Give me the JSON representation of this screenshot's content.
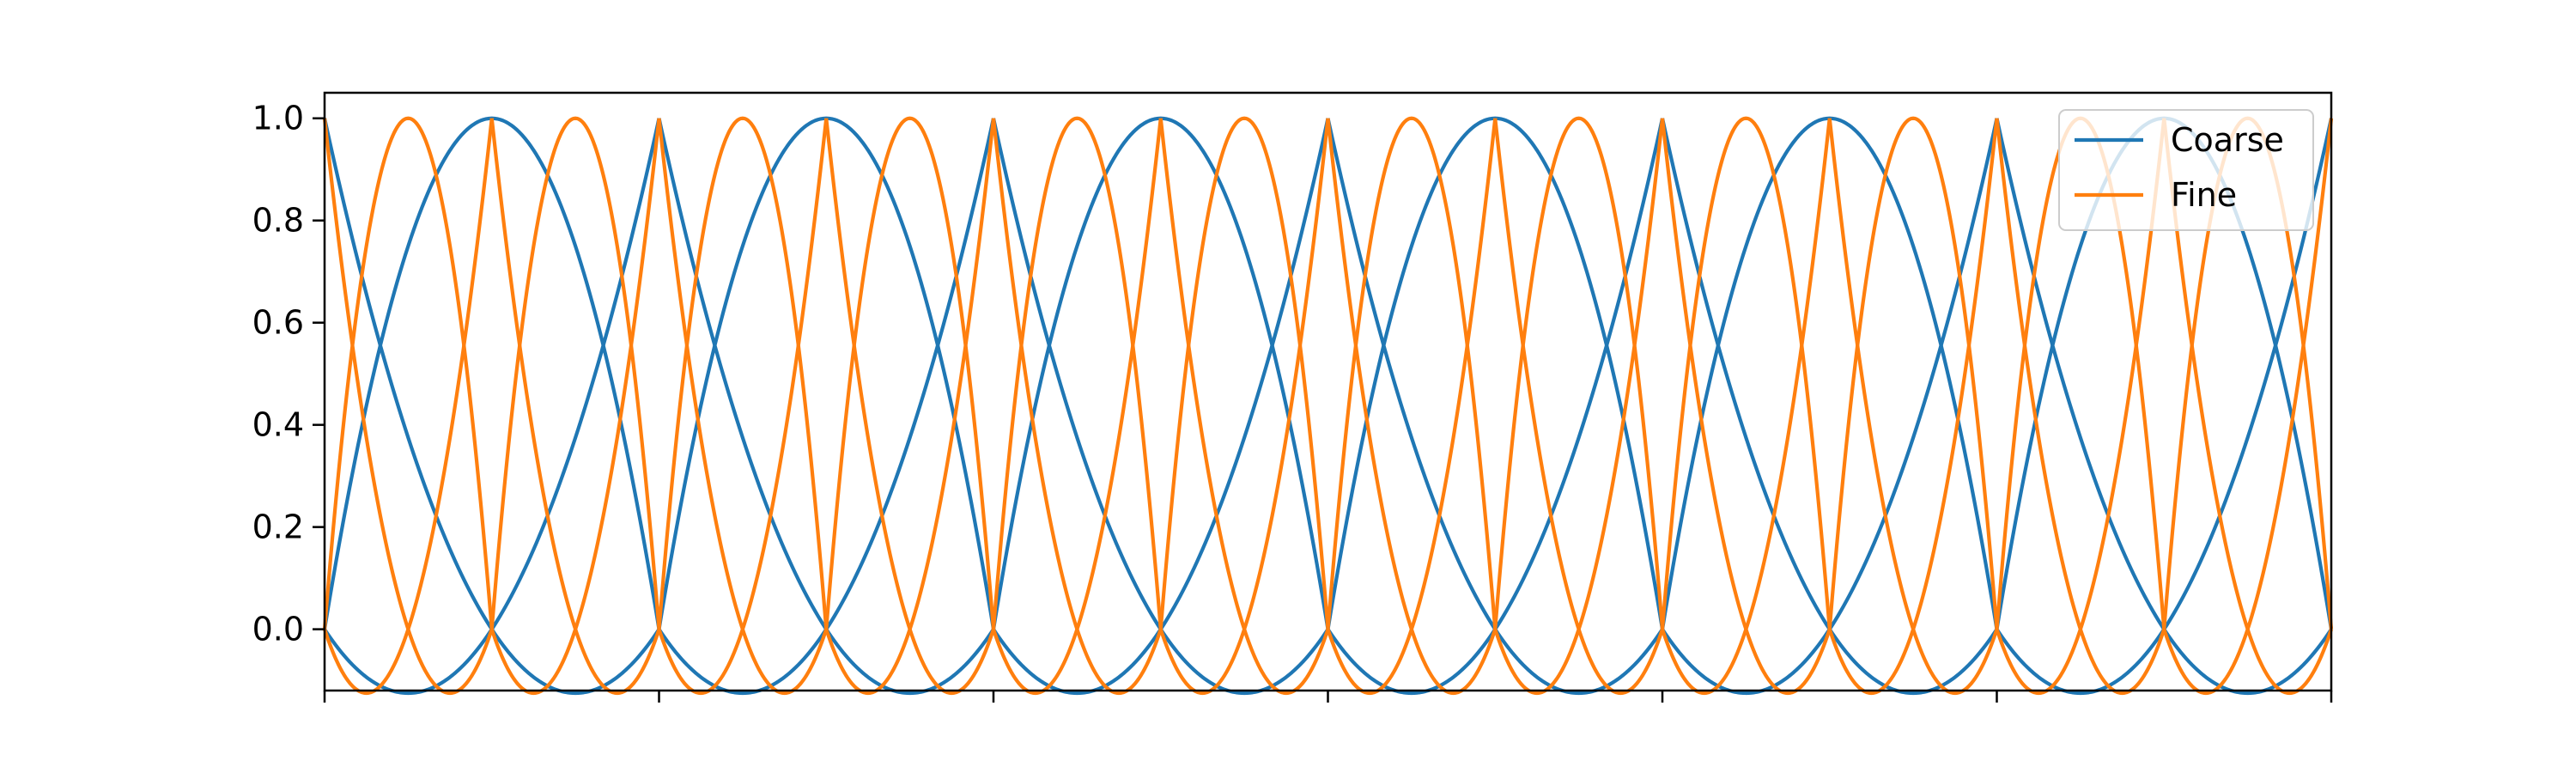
{
  "chart_data": {
    "type": "line",
    "title": "",
    "xlabel": "",
    "ylabel": "",
    "xlim": [
      0,
      1
    ],
    "ylim": [
      -0.12,
      1.05
    ],
    "x_tick_values": [
      0,
      0.16667,
      0.33333,
      0.5,
      0.66667,
      0.83333,
      1.0
    ],
    "y_ticks": [
      "0.0",
      "0.2",
      "0.4",
      "0.6",
      "0.8",
      "1.0"
    ],
    "y_tick_values": [
      0,
      0.2,
      0.4,
      0.6,
      0.8,
      1.0
    ],
    "grid": false,
    "legend_position": "top-right",
    "series": [
      {
        "name": "Coarse",
        "color": "#1f77b4",
        "kind": "quadratic Lagrange basis functions",
        "elements": [
          [
            0,
            0.16667
          ],
          [
            0.16667,
            0.33333
          ],
          [
            0.33333,
            0.5
          ],
          [
            0.5,
            0.66667
          ],
          [
            0.66667,
            0.83333
          ],
          [
            0.83333,
            1.0
          ]
        ],
        "functions_per_element": 3,
        "peak_value": 1.0,
        "minimum_value": -0.0625
      },
      {
        "name": "Fine",
        "color": "#ff7f0e",
        "kind": "quadratic Lagrange basis functions",
        "elements": [
          [
            0,
            0.08333
          ],
          [
            0.08333,
            0.16667
          ],
          [
            0.16667,
            0.25
          ],
          [
            0.25,
            0.33333
          ],
          [
            0.33333,
            0.41667
          ],
          [
            0.41667,
            0.5
          ],
          [
            0.5,
            0.58333
          ],
          [
            0.58333,
            0.66667
          ],
          [
            0.66667,
            0.75
          ],
          [
            0.75,
            0.83333
          ],
          [
            0.83333,
            0.91667
          ],
          [
            0.91667,
            1.0
          ]
        ],
        "functions_per_element": 3,
        "peak_value": 1.0,
        "minimum_value": -0.0625
      }
    ]
  }
}
